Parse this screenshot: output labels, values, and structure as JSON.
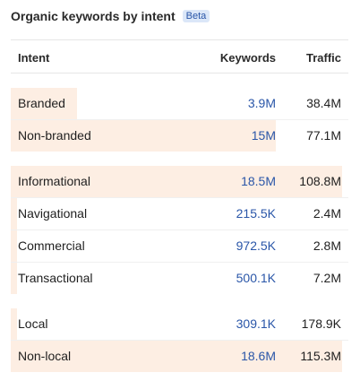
{
  "header": {
    "title": "Organic keywords by intent",
    "badge": "Beta"
  },
  "columns": {
    "intent": "Intent",
    "keywords": "Keywords",
    "traffic": "Traffic"
  },
  "groups": [
    {
      "rows": [
        {
          "label": "Branded",
          "keywords": "3.9M",
          "traffic": "38.4M",
          "share": 0.2
        },
        {
          "label": "Non-branded",
          "keywords": "15M",
          "traffic": "77.1M",
          "share": 0.8
        }
      ]
    },
    {
      "rows": [
        {
          "label": "Informational",
          "keywords": "18.5M",
          "traffic": "108.8M",
          "share": 1.0
        },
        {
          "label": "Navigational",
          "keywords": "215.5K",
          "traffic": "2.4M",
          "share": 0.02
        },
        {
          "label": "Commercial",
          "keywords": "972.5K",
          "traffic": "2.8M",
          "share": 0.02
        },
        {
          "label": "Transactional",
          "keywords": "500.1K",
          "traffic": "7.2M",
          "share": 0.02
        }
      ]
    },
    {
      "rows": [
        {
          "label": "Local",
          "keywords": "309.1K",
          "traffic": "178.9K",
          "share": 0.02
        },
        {
          "label": "Non-local",
          "keywords": "18.6M",
          "traffic": "115.3M",
          "share": 1.0
        }
      ]
    }
  ],
  "colors": {
    "bar": "#fdeee3",
    "link": "#2a56a8",
    "badge_bg": "#dbe7f8"
  }
}
